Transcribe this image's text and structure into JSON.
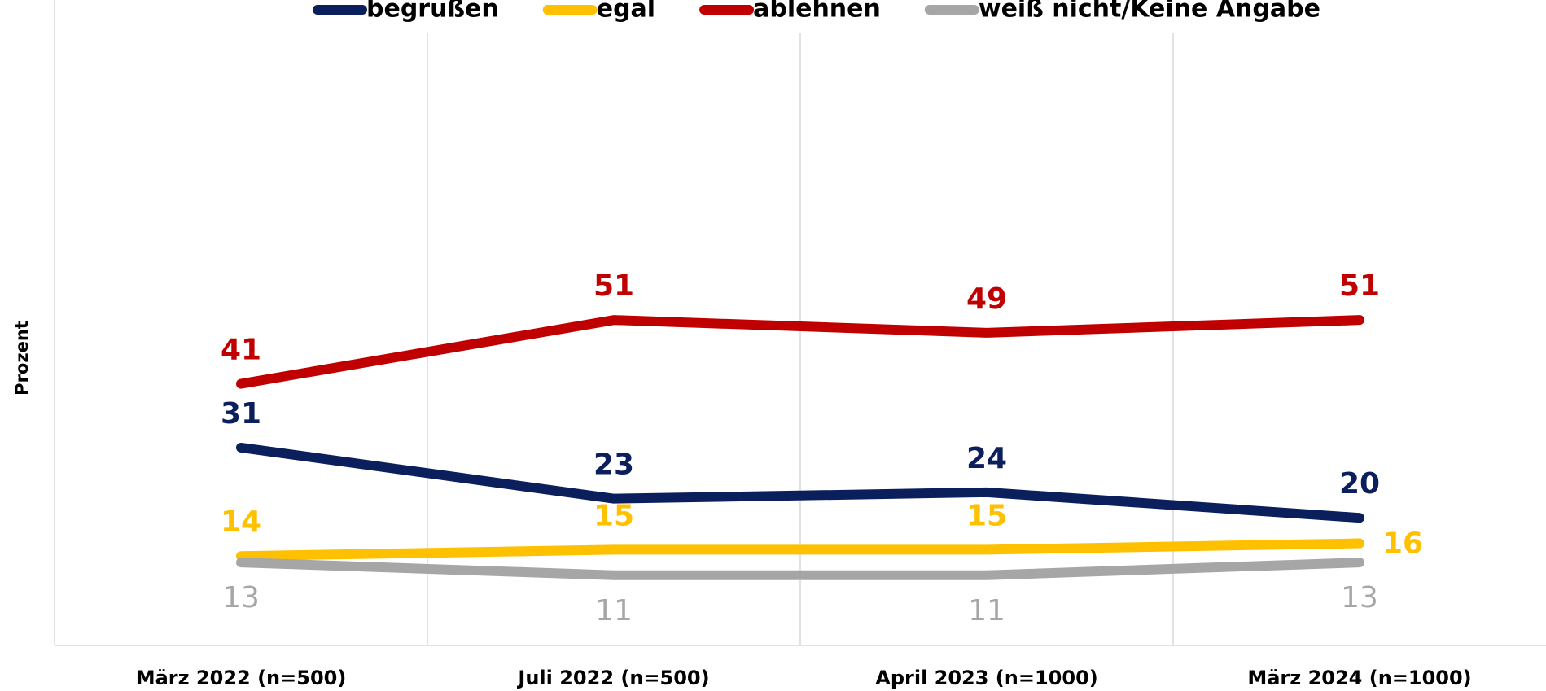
{
  "chart_data": {
    "type": "line",
    "y_label": "Prozent",
    "categories": [
      "März 2022 (n=500)",
      "Juli 2022 (n=500)",
      "April 2023 (n=1000)",
      "März 2024 (n=1000)"
    ],
    "series": [
      {
        "name": "begrußen",
        "color": "#0b1f5c",
        "values": [
          31,
          23,
          24,
          20
        ]
      },
      {
        "name": "egal",
        "color": "#ffc000",
        "values": [
          14,
          15,
          15,
          16
        ]
      },
      {
        "name": "ablehnen",
        "color": "#c00000",
        "values": [
          41,
          51,
          49,
          51
        ]
      },
      {
        "name": "weiß nicht/Keine Angabe",
        "color": "#a6a6a6",
        "values": [
          13,
          11,
          11,
          13
        ]
      }
    ],
    "ylim": [
      0,
      100
    ],
    "grid": true
  }
}
